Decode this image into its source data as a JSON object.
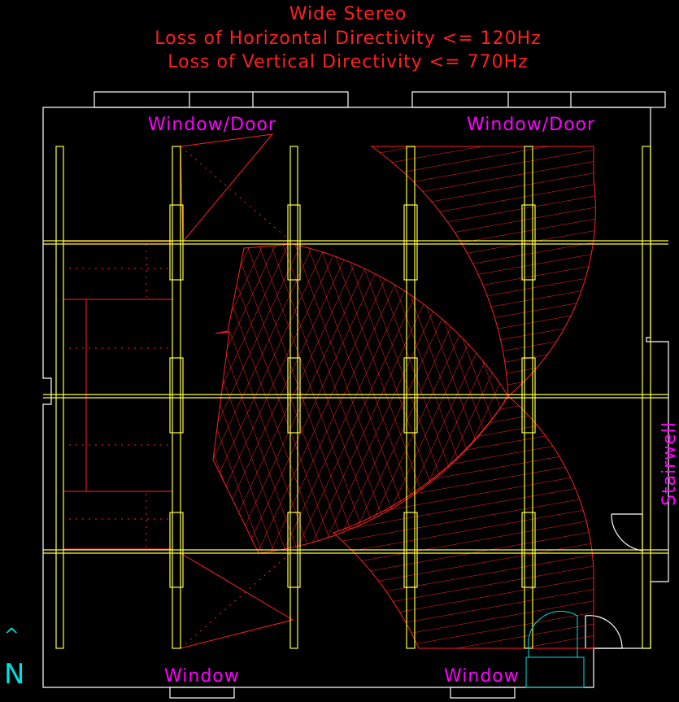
{
  "title": {
    "lines": [
      "Wide Stereo",
      "Loss of Horizontal Directivity <= 120Hz",
      "Loss of Vertical Directivity <= 770Hz"
    ]
  },
  "labels": {
    "top_left": "Window/Door",
    "top_right": "Window/Door",
    "bottom_left": "Window",
    "bottom_right": "Window",
    "right": "Stairwell"
  },
  "compass": {
    "arrow": "^",
    "north": "N"
  }
}
